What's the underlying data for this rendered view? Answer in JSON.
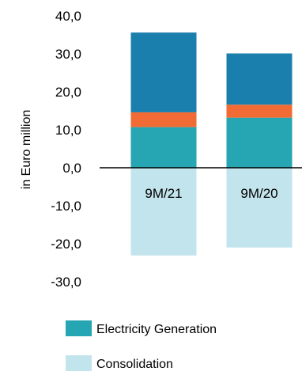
{
  "chart_data": {
    "type": "bar",
    "stacked": true,
    "ylabel": "in Euro million",
    "categories": [
      "9M/21",
      "9M/20"
    ],
    "ylim": [
      -30,
      40
    ],
    "yticks": [
      40,
      30,
      20,
      10,
      0,
      -10,
      -20,
      -30
    ],
    "ytick_labels": [
      "40,0",
      "30,0",
      "20,0",
      "10,0",
      "0,0",
      "-10,0",
      "-20,0",
      "-30,0"
    ],
    "series": [
      {
        "name": "Electricity Generation",
        "values": [
          10.7,
          13.2
        ],
        "color": "#26a5b2"
      },
      {
        "values": [
          3.9,
          3.4
        ],
        "color": "#f36b34"
      },
      {
        "values": [
          21.0,
          13.5
        ],
        "color": "#1b7fae"
      },
      {
        "name": "Consolidation",
        "values": [
          -23.1,
          -21.0
        ],
        "color": "#c2e4ec"
      }
    ],
    "legend": [
      {
        "label": "Electricity Generation",
        "color": "#26a5b2"
      },
      {
        "label": "Consolidation",
        "color": "#c2e4ec"
      }
    ],
    "legend_position": "bottom",
    "grid": false
  }
}
